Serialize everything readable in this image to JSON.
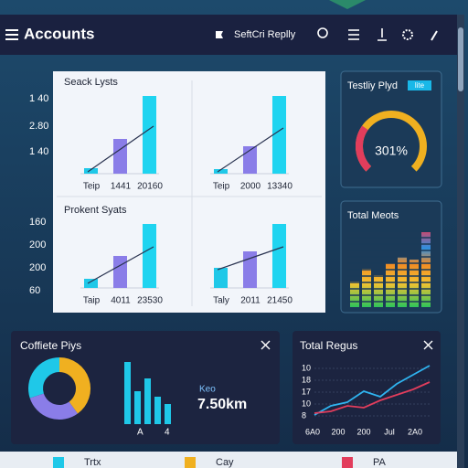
{
  "header": {
    "title": "Accounts",
    "search": "SeftCri Replly"
  },
  "panel_main": {
    "charts": [
      {
        "title": "Seack Lysts",
        "axis_labels": [
          "1 40",
          "2.80",
          "1 40"
        ],
        "groups": [
          {
            "labels": [
              "Teip",
              "1441",
              "20160"
            ],
            "values": [
              6,
              38,
              85
            ],
            "trend": [
              2,
              52
            ]
          },
          {
            "labels": [
              "Teip",
              "2000",
              "13340"
            ],
            "values": [
              5,
              30,
              85
            ],
            "trend": [
              2,
              50
            ]
          }
        ]
      },
      {
        "title": "Prokent Syats",
        "axis_labels": [
          "160",
          "200",
          "200",
          "60"
        ],
        "groups": [
          {
            "labels": [
              "Taip",
              "4011",
              "23530"
            ],
            "values": [
              10,
              35,
              70
            ],
            "trend": [
              5,
              45
            ]
          },
          {
            "labels": [
              "Taly",
              "2011",
              "21450"
            ],
            "values": [
              22,
              40,
              70
            ],
            "trend": [
              20,
              45
            ]
          }
        ]
      }
    ]
  },
  "gauge": {
    "title": "Testliy Plyd",
    "badge": "lite",
    "label": "301%",
    "value": 75
  },
  "meters": {
    "title": "Total Meots",
    "values": [
      28,
      42,
      35,
      48,
      55,
      52,
      82
    ]
  },
  "summary": {
    "title": "Coffiete Piys",
    "donut": [
      40,
      30,
      30
    ],
    "bars": [
      68,
      36,
      50,
      30,
      22
    ],
    "bar_labels": [
      "A",
      "4"
    ],
    "stat_label": "Keo",
    "stat_value": "7.50km"
  },
  "regus": {
    "title": "Total Regus",
    "axis_labels": [
      "10",
      "18",
      "17",
      "10",
      "8"
    ],
    "x_labels": [
      "6A0",
      "200",
      "200",
      "Jul",
      "2A0"
    ],
    "series": [
      {
        "color": "#2fb4f0",
        "values": [
          4,
          14,
          18,
          30,
          24,
          38,
          48,
          58
        ]
      },
      {
        "color": "#e23d5c",
        "values": [
          6,
          8,
          14,
          12,
          20,
          26,
          32,
          40
        ]
      }
    ]
  },
  "footer": {
    "buttons": [
      "Trtx",
      "Cay",
      "PA"
    ]
  }
}
